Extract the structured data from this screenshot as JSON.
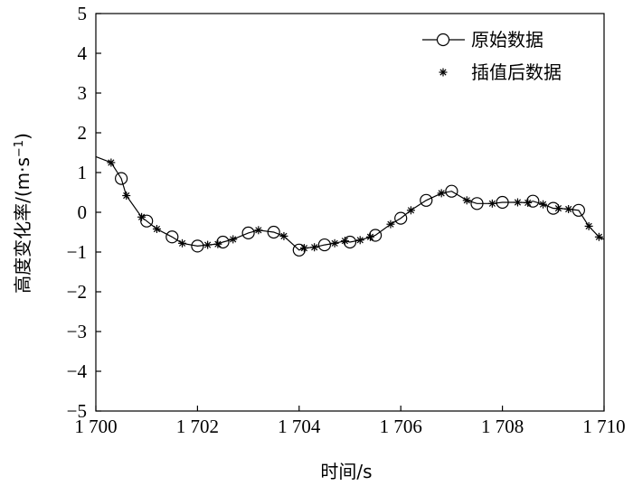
{
  "chart_data": {
    "type": "line",
    "xlabel": "时间/s",
    "ylabel_main": "高度变化率/(m·s",
    "ylabel_sup": "−1",
    "ylabel_close": ")",
    "xlim": [
      1700,
      1710
    ],
    "ylim": [
      -5,
      5
    ],
    "x_ticks": [
      1700,
      1702,
      1704,
      1706,
      1708,
      1710
    ],
    "x_tick_labels": [
      "1 700",
      "1 702",
      "1 704",
      "1 706",
      "1 708",
      "1 710"
    ],
    "y_ticks": [
      5,
      4,
      3,
      2,
      1,
      0,
      -1,
      -2,
      -3,
      -4,
      -5
    ],
    "y_tick_labels": [
      "5",
      "4",
      "3",
      "2",
      "1",
      "0",
      "−1",
      "−2",
      "−3",
      "−4",
      "−5"
    ],
    "grid": false,
    "legend_position": "top-right",
    "series": [
      {
        "name": "原始数据",
        "marker": "circle",
        "x": [
          1700.5,
          1701.0,
          1701.5,
          1702.0,
          1702.5,
          1703.0,
          1703.5,
          1704.0,
          1704.5,
          1705.0,
          1705.5,
          1706.0,
          1706.5,
          1707.0,
          1707.5,
          1708.0,
          1708.6,
          1709.0,
          1709.5
        ],
        "y": [
          0.85,
          -0.22,
          -0.62,
          -0.85,
          -0.75,
          -0.52,
          -0.5,
          -0.95,
          -0.82,
          -0.75,
          -0.58,
          -0.15,
          0.3,
          0.53,
          0.22,
          0.25,
          0.28,
          0.1,
          0.05
        ]
      },
      {
        "name": "插值后数据",
        "marker": "asterisk",
        "x": [
          1700.3,
          1700.6,
          1700.9,
          1701.2,
          1701.7,
          1702.2,
          1702.4,
          1702.7,
          1703.2,
          1703.7,
          1704.1,
          1704.3,
          1704.7,
          1704.9,
          1705.2,
          1705.4,
          1705.8,
          1706.2,
          1706.8,
          1707.3,
          1707.8,
          1708.3,
          1708.5,
          1708.8,
          1709.1,
          1709.3,
          1709.7,
          1709.9
        ],
        "y": [
          1.25,
          0.42,
          -0.12,
          -0.42,
          -0.78,
          -0.82,
          -0.8,
          -0.68,
          -0.45,
          -0.6,
          -0.9,
          -0.88,
          -0.78,
          -0.72,
          -0.7,
          -0.62,
          -0.3,
          0.05,
          0.48,
          0.3,
          0.22,
          0.25,
          0.24,
          0.2,
          0.1,
          0.08,
          -0.35,
          -0.62
        ]
      }
    ],
    "line_path": {
      "x": [
        1700.0,
        1700.3,
        1700.5,
        1700.6,
        1700.9,
        1701.0,
        1701.2,
        1701.5,
        1701.7,
        1702.0,
        1702.2,
        1702.4,
        1702.5,
        1702.7,
        1703.0,
        1703.2,
        1703.5,
        1703.7,
        1704.0,
        1704.1,
        1704.3,
        1704.5,
        1704.7,
        1704.9,
        1705.0,
        1705.2,
        1705.4,
        1705.5,
        1705.8,
        1706.0,
        1706.2,
        1706.5,
        1706.8,
        1707.0,
        1707.3,
        1707.5,
        1707.8,
        1708.0,
        1708.3,
        1708.5,
        1708.6,
        1708.8,
        1709.0,
        1709.1,
        1709.3,
        1709.5,
        1709.7,
        1709.9,
        1710.0
      ],
      "y": [
        1.4,
        1.25,
        0.85,
        0.42,
        -0.12,
        -0.22,
        -0.42,
        -0.62,
        -0.78,
        -0.85,
        -0.82,
        -0.8,
        -0.75,
        -0.68,
        -0.52,
        -0.45,
        -0.5,
        -0.6,
        -0.95,
        -0.9,
        -0.88,
        -0.82,
        -0.78,
        -0.72,
        -0.75,
        -0.7,
        -0.62,
        -0.58,
        -0.3,
        -0.15,
        0.05,
        0.3,
        0.48,
        0.53,
        0.3,
        0.22,
        0.22,
        0.25,
        0.25,
        0.24,
        0.28,
        0.2,
        0.1,
        0.1,
        0.08,
        0.05,
        -0.35,
        -0.62,
        -0.68
      ]
    },
    "colors": {
      "line": "#000000",
      "marker": "#000000",
      "axis": "#000000"
    }
  }
}
